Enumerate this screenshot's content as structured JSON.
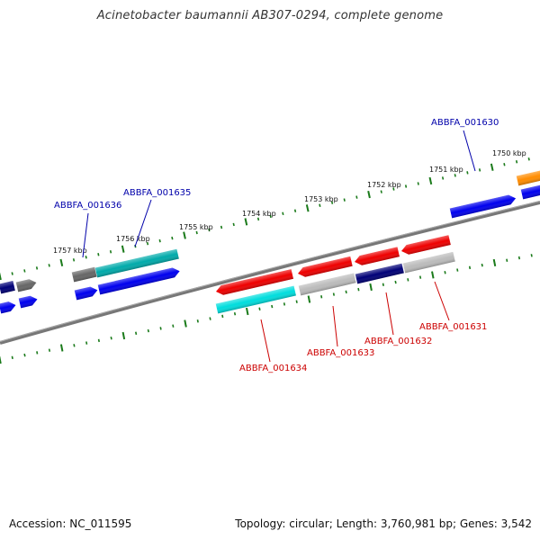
{
  "title": "Acinetobacter baumannii AB307-0294, complete genome",
  "accession_label": "Accession:",
  "accession": "NC_011595",
  "topology_label": "Topology:",
  "topology": "circular",
  "length_label": "Length:",
  "length": "3,760,981 bp",
  "genes_label": "Genes:",
  "genes": "3,542",
  "colors": {
    "backbone": "#777777",
    "tick": "#1a7a1a",
    "forward_label": "#0000aa",
    "reverse_label": "#cc0000",
    "red": "#ee0000",
    "blue": "#0000ee",
    "navy": "#000077",
    "cyan": "#00dddd",
    "teal": "#00aaaa",
    "gray": "#bbbbbb",
    "dark_gray": "#666666",
    "orange": "#ff8c00"
  },
  "kbp_markers": [
    "1750 kbp",
    "1751 kbp",
    "1752 kbp",
    "1753 kbp",
    "1754 kbp",
    "1755 kbp",
    "1756 kbp",
    "1757 kbp"
  ],
  "gene_labels": {
    "forward": [
      "ABBFA_001630",
      "ABBFA_001635",
      "ABBFA_001636"
    ],
    "reverse": [
      "ABBFA_001631",
      "ABBFA_001632",
      "ABBFA_001633",
      "ABBFA_001634"
    ]
  }
}
